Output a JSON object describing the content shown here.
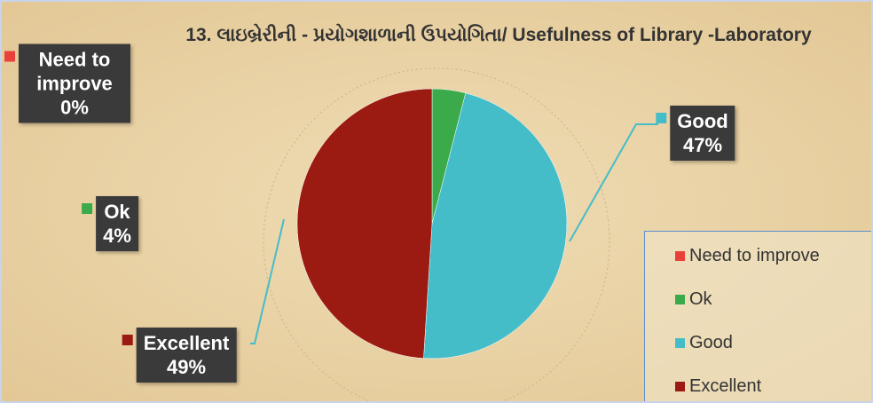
{
  "chart_data": {
    "type": "pie",
    "title": "13. લાઇબ્રેરીની - પ્રયોગશાળાની ઉપયોગિતા/ Usefulness of  Library -Laboratory",
    "categories": [
      "Need to improve",
      "Ok",
      "Good",
      "Excellent"
    ],
    "values": [
      0,
      4,
      47,
      49
    ],
    "value_labels": [
      "0%",
      "4%",
      "47%",
      "49%"
    ],
    "colors": [
      "#e8413a",
      "#3aaa4a",
      "#45bdc8",
      "#9b1a12"
    ],
    "legend": "bottom-right"
  }
}
